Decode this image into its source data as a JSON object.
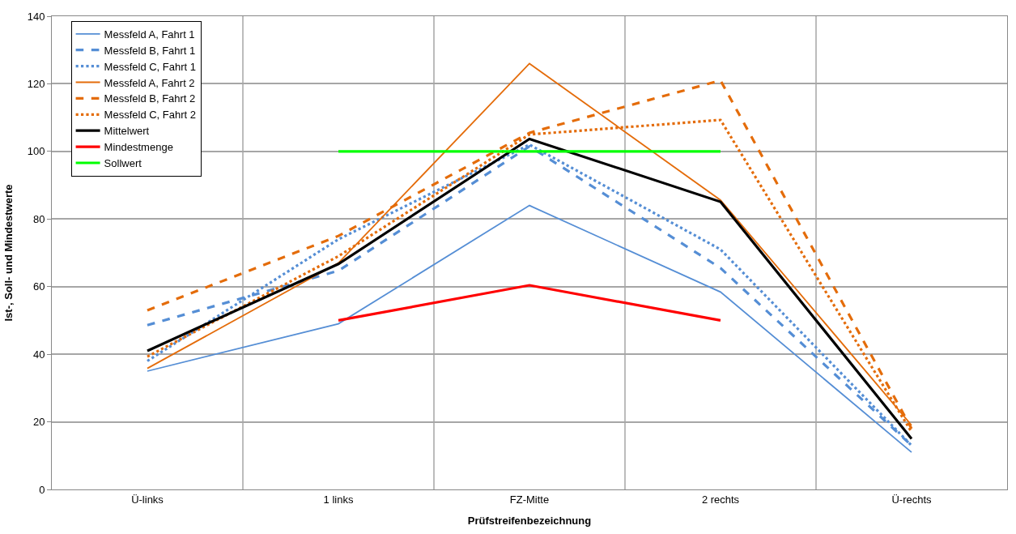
{
  "chart_data": {
    "type": "line",
    "xlabel": "Prüfstreifenbezeichnung",
    "ylabel": "Ist-, Soll- und Mindestwerte",
    "categories": [
      "Ü-links",
      "1 links",
      "FZ-Mitte",
      "2 rechts",
      "Ü-rechts"
    ],
    "series": [
      {
        "name": "Messfeld A, Fahrt 1",
        "color": "#558ed5",
        "line_style": "solid",
        "values": [
          35,
          49,
          84,
          58.4,
          11
        ]
      },
      {
        "name": "Messfeld B, Fahrt 1",
        "color": "#558ed5",
        "line_style": "dashed",
        "values": [
          48.6,
          64.7,
          101.5,
          65.5,
          13
        ]
      },
      {
        "name": "Messfeld C, Fahrt 1",
        "color": "#558ed5",
        "line_style": "dotted",
        "values": [
          38,
          74,
          102,
          71,
          13
        ]
      },
      {
        "name": "Messfeld A, Fahrt 2",
        "color": "#e46c0a",
        "line_style": "solid",
        "values": [
          35.8,
          67,
          126,
          85.6,
          19
        ]
      },
      {
        "name": "Messfeld B, Fahrt 2",
        "color": "#e46c0a",
        "line_style": "dashed",
        "values": [
          53,
          75,
          105.5,
          121,
          18
        ]
      },
      {
        "name": "Messfeld C, Fahrt 2",
        "color": "#e46c0a",
        "line_style": "dotted",
        "values": [
          39.3,
          69,
          105,
          109.3,
          17
        ]
      },
      {
        "name": "Mittelwert",
        "color": "#000000",
        "line_style": "solid",
        "values": [
          41,
          66.7,
          103.7,
          85.1,
          15
        ]
      },
      {
        "name": "Mindestmenge",
        "color": "#ff0000",
        "line_style": "solid",
        "values": [
          null,
          50,
          60.4,
          50,
          null
        ]
      },
      {
        "name": "Sollwert",
        "color": "#00ff00",
        "line_style": "solid",
        "values": [
          null,
          100,
          100,
          100,
          null
        ]
      }
    ],
    "ylim": [
      0,
      140
    ],
    "yticks": [
      0,
      20,
      40,
      60,
      80,
      100,
      120,
      140
    ],
    "grid": true,
    "legend": "top left",
    "marker": "none"
  }
}
